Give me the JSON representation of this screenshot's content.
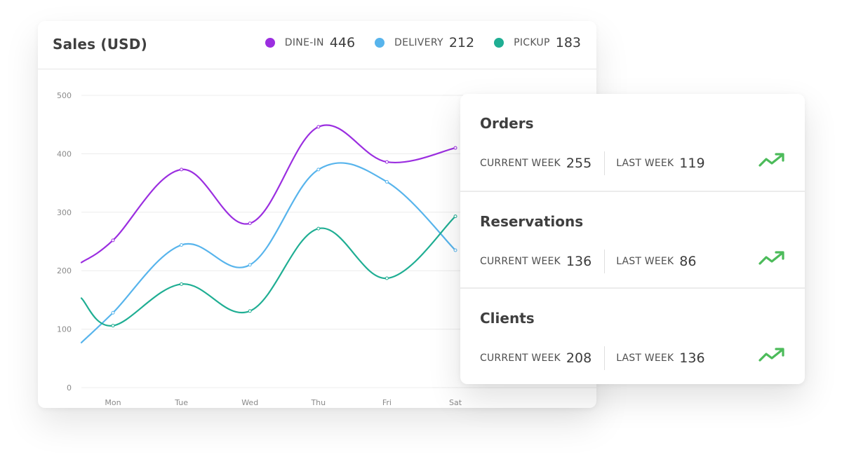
{
  "sales": {
    "title": "Sales (USD)",
    "legend": [
      {
        "label": "DINE-IN",
        "value": "446",
        "color": "#9b2ee0"
      },
      {
        "label": "DELIVERY",
        "value": "212",
        "color": "#57b4ec"
      },
      {
        "label": "PICKUP",
        "value": "183",
        "color": "#1fae93"
      }
    ]
  },
  "chart_data": {
    "type": "line",
    "categories": [
      "Mon",
      "Tue",
      "Wed",
      "Thu",
      "Fri",
      "Sat"
    ],
    "ylim": [
      0,
      500
    ],
    "yticks": [
      "500",
      "400",
      "300",
      "200",
      "100",
      "0"
    ],
    "grid": true,
    "series": [
      {
        "name": "DINE-IN",
        "color": "#9b2ee0",
        "start": 214,
        "values": [
          252,
          373,
          281,
          446,
          386,
          410
        ]
      },
      {
        "name": "DELIVERY",
        "color": "#57b4ec",
        "start": 77,
        "values": [
          128,
          244,
          210,
          373,
          352,
          235
        ]
      },
      {
        "name": "PICKUP",
        "color": "#1fae93",
        "start": 153,
        "values": [
          106,
          177,
          131,
          272,
          187,
          293
        ]
      }
    ]
  },
  "stats": [
    {
      "title": "Orders",
      "current_label": "CURRENT WEEK",
      "current_value": "255",
      "last_label": "LAST WEEK",
      "last_value": "119",
      "trend": "trending-up-icon",
      "trend_color": "#4cbb5a"
    },
    {
      "title": "Reservations",
      "current_label": "CURRENT WEEK",
      "current_value": "136",
      "last_label": "LAST WEEK",
      "last_value": "86",
      "trend": "trending-up-icon",
      "trend_color": "#4cbb5a"
    },
    {
      "title": "Clients",
      "current_label": "CURRENT WEEK",
      "current_value": "208",
      "last_label": "LAST WEEK",
      "last_value": "136",
      "trend": "trending-up-icon",
      "trend_color": "#4cbb5a"
    }
  ]
}
